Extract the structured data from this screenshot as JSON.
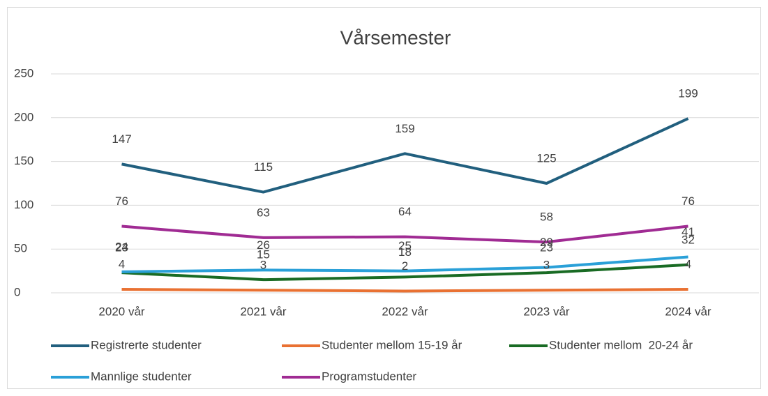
{
  "chart_data": {
    "type": "line",
    "title": "Vårsemester",
    "categories": [
      "2020 vår",
      "2021 vår",
      "2022 vår",
      "2023 vår",
      "2024 vår"
    ],
    "series": [
      {
        "name": "Registrerte studenter",
        "color": "#215f7e",
        "values": [
          147,
          115,
          159,
          125,
          199
        ]
      },
      {
        "name": "Studenter mellom 15-19 år",
        "color": "#e97132",
        "values": [
          4,
          3,
          2,
          3,
          4
        ]
      },
      {
        "name": "Studenter mellom  20-24 år",
        "color": "#196b24",
        "values": [
          23,
          15,
          18,
          23,
          32
        ]
      },
      {
        "name": "Mannlige studenter",
        "color": "#2aa0d8",
        "values": [
          24,
          26,
          25,
          29,
          41
        ]
      },
      {
        "name": "Programstudenter",
        "color": "#a02b93",
        "values": [
          76,
          63,
          64,
          58,
          76
        ]
      }
    ],
    "ylim": [
      0,
      250
    ],
    "yticks": [
      0,
      50,
      100,
      150,
      200,
      250
    ],
    "grid": true,
    "legend": "bottom",
    "data_labels": true
  }
}
